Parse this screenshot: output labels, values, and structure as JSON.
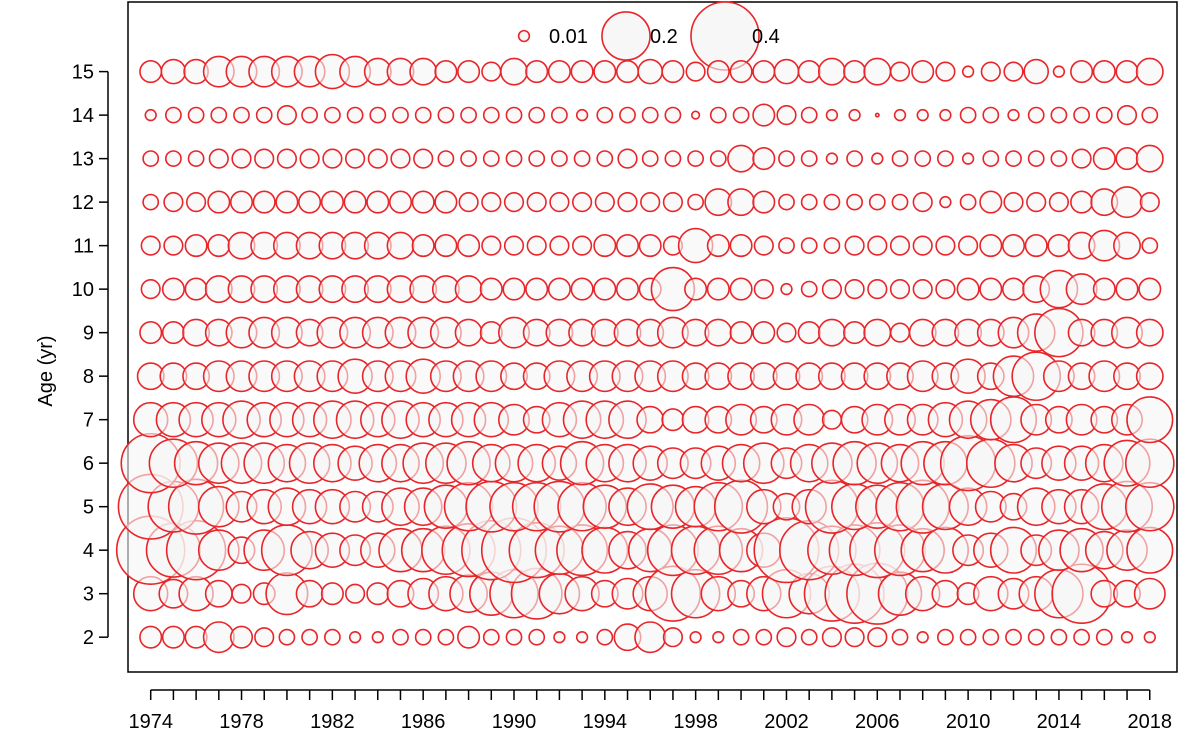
{
  "chart_data": {
    "type": "scatter",
    "subtype": "bubble",
    "title": "",
    "xlabel": "",
    "ylabel": "Age (yr)",
    "x_start": 1974,
    "x_end": 2018,
    "xlim": [
      1973.0,
      2019.2
    ],
    "ylim": [
      1.2,
      16.6
    ],
    "x_ticks": [
      1974,
      1975,
      1976,
      1977,
      1978,
      1979,
      1980,
      1981,
      1982,
      1983,
      1984,
      1985,
      1986,
      1987,
      1988,
      1989,
      1990,
      1991,
      1992,
      1993,
      1994,
      1995,
      1996,
      1997,
      1998,
      1999,
      2000,
      2001,
      2002,
      2003,
      2004,
      2005,
      2006,
      2007,
      2008,
      2009,
      2010,
      2011,
      2012,
      2013,
      2014,
      2015,
      2016,
      2017,
      2018
    ],
    "x_tick_labels": [
      "1974",
      "1978",
      "1982",
      "1986",
      "1990",
      "1994",
      "1998",
      "2002",
      "2006",
      "2010",
      "2014",
      "2018"
    ],
    "x_tick_label_years": [
      1974,
      1978,
      1982,
      1986,
      1990,
      1994,
      1998,
      2002,
      2006,
      2010,
      2014,
      2018
    ],
    "y_ticks": [
      2,
      3,
      4,
      5,
      6,
      7,
      8,
      9,
      10,
      11,
      12,
      13,
      14,
      15
    ],
    "y_tick_labels": [
      "2",
      "3",
      "4",
      "5",
      "6",
      "7",
      "8",
      "9",
      "10",
      "11",
      "12",
      "13",
      "14",
      "15"
    ],
    "bubble_color": "#e8262a",
    "grid": false,
    "legend": {
      "placement": "top-center",
      "entries": [
        {
          "label": "0.01",
          "value": 0.01
        },
        {
          "label": "0.2",
          "value": 0.2
        },
        {
          "label": "0.4",
          "value": 0.4
        }
      ]
    },
    "series": [
      {
        "age": 2,
        "values": [
          0.04,
          0.04,
          0.04,
          0.08,
          0.04,
          0.03,
          0.02,
          0.02,
          0.02,
          0.01,
          0.01,
          0.02,
          0.02,
          0.02,
          0.04,
          0.02,
          0.02,
          0.02,
          0.01,
          0.01,
          0.02,
          0.06,
          0.08,
          0.03,
          0.01,
          0.01,
          0.02,
          0.02,
          0.03,
          0.02,
          0.03,
          0.03,
          0.03,
          0.02,
          0.01,
          0.02,
          0.02,
          0.02,
          0.02,
          0.02,
          0.02,
          0.02,
          0.02,
          0.01,
          0.01
        ]
      },
      {
        "age": 3,
        "values": [
          0.1,
          0.07,
          0.1,
          0.06,
          0.03,
          0.04,
          0.15,
          0.06,
          0.04,
          0.03,
          0.04,
          0.06,
          0.08,
          0.1,
          0.12,
          0.16,
          0.2,
          0.22,
          0.14,
          0.1,
          0.06,
          0.08,
          0.1,
          0.26,
          0.2,
          0.1,
          0.06,
          0.1,
          0.2,
          0.14,
          0.26,
          0.3,
          0.32,
          0.16,
          0.1,
          0.06,
          0.04,
          0.1,
          0.08,
          0.1,
          0.2,
          0.3,
          0.06,
          0.06,
          0.08
        ]
      },
      {
        "age": 4,
        "values": [
          0.4,
          0.25,
          0.3,
          0.14,
          0.06,
          0.14,
          0.22,
          0.12,
          0.1,
          0.08,
          0.1,
          0.16,
          0.16,
          0.2,
          0.24,
          0.3,
          0.36,
          0.26,
          0.2,
          0.22,
          0.18,
          0.12,
          0.16,
          0.22,
          0.2,
          0.2,
          0.16,
          0.1,
          0.36,
          0.3,
          0.2,
          0.22,
          0.26,
          0.22,
          0.16,
          0.18,
          0.08,
          0.1,
          0.18,
          0.08,
          0.14,
          0.16,
          0.12,
          0.14,
          0.18
        ]
      },
      {
        "age": 5,
        "values": [
          0.36,
          0.22,
          0.26,
          0.14,
          0.08,
          0.1,
          0.12,
          0.1,
          0.1,
          0.08,
          0.08,
          0.12,
          0.12,
          0.16,
          0.2,
          0.22,
          0.2,
          0.2,
          0.22,
          0.2,
          0.16,
          0.12,
          0.18,
          0.16,
          0.14,
          0.2,
          0.24,
          0.1,
          0.06,
          0.1,
          0.24,
          0.18,
          0.16,
          0.2,
          0.24,
          0.18,
          0.12,
          0.08,
          0.06,
          0.12,
          0.1,
          0.1,
          0.18,
          0.22,
          0.2
        ]
      },
      {
        "age": 6,
        "values": [
          0.3,
          0.2,
          0.16,
          0.14,
          0.14,
          0.14,
          0.12,
          0.14,
          0.12,
          0.1,
          0.12,
          0.12,
          0.14,
          0.14,
          0.16,
          0.12,
          0.12,
          0.12,
          0.1,
          0.16,
          0.12,
          0.12,
          0.1,
          0.08,
          0.08,
          0.1,
          0.12,
          0.14,
          0.08,
          0.12,
          0.14,
          0.16,
          0.14,
          0.12,
          0.16,
          0.16,
          0.26,
          0.2,
          0.12,
          0.08,
          0.1,
          0.1,
          0.12,
          0.18,
          0.2
        ]
      },
      {
        "age": 7,
        "values": [
          0.1,
          0.1,
          0.1,
          0.1,
          0.12,
          0.1,
          0.1,
          0.1,
          0.12,
          0.12,
          0.1,
          0.12,
          0.1,
          0.1,
          0.1,
          0.1,
          0.08,
          0.06,
          0.1,
          0.12,
          0.12,
          0.12,
          0.06,
          0.04,
          0.06,
          0.06,
          0.08,
          0.06,
          0.08,
          0.08,
          0.03,
          0.06,
          0.08,
          0.08,
          0.08,
          0.1,
          0.12,
          0.14,
          0.18,
          0.08,
          0.06,
          0.08,
          0.06,
          0.08,
          0.18
        ]
      },
      {
        "age": 8,
        "values": [
          0.06,
          0.06,
          0.06,
          0.08,
          0.08,
          0.08,
          0.08,
          0.08,
          0.08,
          0.1,
          0.08,
          0.08,
          0.1,
          0.08,
          0.08,
          0.08,
          0.06,
          0.06,
          0.08,
          0.08,
          0.08,
          0.08,
          0.08,
          0.08,
          0.06,
          0.06,
          0.06,
          0.06,
          0.06,
          0.06,
          0.06,
          0.06,
          0.06,
          0.06,
          0.08,
          0.06,
          0.1,
          0.06,
          0.14,
          0.2,
          0.08,
          0.06,
          0.08,
          0.06,
          0.06
        ]
      },
      {
        "age": 9,
        "values": [
          0.04,
          0.04,
          0.06,
          0.06,
          0.08,
          0.08,
          0.08,
          0.06,
          0.08,
          0.08,
          0.08,
          0.08,
          0.08,
          0.08,
          0.06,
          0.04,
          0.08,
          0.06,
          0.06,
          0.06,
          0.06,
          0.06,
          0.06,
          0.08,
          0.06,
          0.06,
          0.04,
          0.04,
          0.03,
          0.04,
          0.06,
          0.04,
          0.06,
          0.03,
          0.06,
          0.06,
          0.06,
          0.06,
          0.08,
          0.12,
          0.2,
          0.06,
          0.06,
          0.08,
          0.06
        ]
      },
      {
        "age": 10,
        "values": [
          0.03,
          0.04,
          0.04,
          0.06,
          0.06,
          0.06,
          0.06,
          0.06,
          0.06,
          0.06,
          0.06,
          0.06,
          0.06,
          0.06,
          0.06,
          0.04,
          0.04,
          0.04,
          0.04,
          0.04,
          0.04,
          0.04,
          0.04,
          0.16,
          0.04,
          0.04,
          0.04,
          0.03,
          0.01,
          0.02,
          0.03,
          0.03,
          0.03,
          0.03,
          0.03,
          0.03,
          0.04,
          0.04,
          0.04,
          0.06,
          0.12,
          0.08,
          0.04,
          0.04,
          0.04
        ]
      },
      {
        "age": 11,
        "values": [
          0.03,
          0.03,
          0.04,
          0.04,
          0.06,
          0.06,
          0.06,
          0.06,
          0.06,
          0.06,
          0.06,
          0.06,
          0.04,
          0.04,
          0.04,
          0.03,
          0.03,
          0.03,
          0.03,
          0.03,
          0.04,
          0.04,
          0.04,
          0.03,
          0.1,
          0.04,
          0.04,
          0.03,
          0.02,
          0.02,
          0.02,
          0.03,
          0.03,
          0.03,
          0.03,
          0.03,
          0.03,
          0.04,
          0.04,
          0.04,
          0.04,
          0.06,
          0.08,
          0.06,
          0.02
        ]
      },
      {
        "age": 12,
        "values": [
          0.02,
          0.03,
          0.03,
          0.04,
          0.04,
          0.04,
          0.04,
          0.04,
          0.04,
          0.04,
          0.04,
          0.04,
          0.04,
          0.04,
          0.03,
          0.03,
          0.03,
          0.03,
          0.03,
          0.03,
          0.03,
          0.03,
          0.03,
          0.03,
          0.02,
          0.06,
          0.06,
          0.04,
          0.02,
          0.02,
          0.02,
          0.02,
          0.02,
          0.02,
          0.03,
          0.01,
          0.02,
          0.04,
          0.03,
          0.03,
          0.03,
          0.04,
          0.06,
          0.08,
          0.03
        ]
      },
      {
        "age": 13,
        "values": [
          0.02,
          0.02,
          0.02,
          0.03,
          0.03,
          0.03,
          0.03,
          0.03,
          0.03,
          0.03,
          0.03,
          0.03,
          0.03,
          0.02,
          0.02,
          0.02,
          0.02,
          0.02,
          0.02,
          0.02,
          0.02,
          0.03,
          0.02,
          0.02,
          0.02,
          0.02,
          0.06,
          0.04,
          0.02,
          0.02,
          0.01,
          0.02,
          0.01,
          0.02,
          0.02,
          0.02,
          0.01,
          0.02,
          0.02,
          0.02,
          0.02,
          0.03,
          0.04,
          0.04,
          0.06
        ]
      },
      {
        "age": 14,
        "values": [
          0.01,
          0.02,
          0.02,
          0.02,
          0.02,
          0.02,
          0.03,
          0.02,
          0.02,
          0.02,
          0.02,
          0.02,
          0.02,
          0.02,
          0.02,
          0.02,
          0.02,
          0.02,
          0.02,
          0.01,
          0.02,
          0.02,
          0.02,
          0.02,
          0.005,
          0.02,
          0.02,
          0.04,
          0.03,
          0.02,
          0.01,
          0.01,
          0.001,
          0.01,
          0.01,
          0.01,
          0.02,
          0.02,
          0.01,
          0.02,
          0.02,
          0.02,
          0.02,
          0.03,
          0.02
        ]
      },
      {
        "age": 15,
        "values": [
          0.04,
          0.05,
          0.05,
          0.08,
          0.08,
          0.08,
          0.08,
          0.08,
          0.1,
          0.08,
          0.06,
          0.06,
          0.06,
          0.04,
          0.04,
          0.03,
          0.06,
          0.04,
          0.04,
          0.04,
          0.04,
          0.04,
          0.05,
          0.04,
          0.03,
          0.04,
          0.04,
          0.04,
          0.05,
          0.04,
          0.06,
          0.04,
          0.06,
          0.03,
          0.04,
          0.03,
          0.01,
          0.03,
          0.03,
          0.05,
          0.01,
          0.04,
          0.04,
          0.04,
          0.06
        ]
      }
    ]
  }
}
